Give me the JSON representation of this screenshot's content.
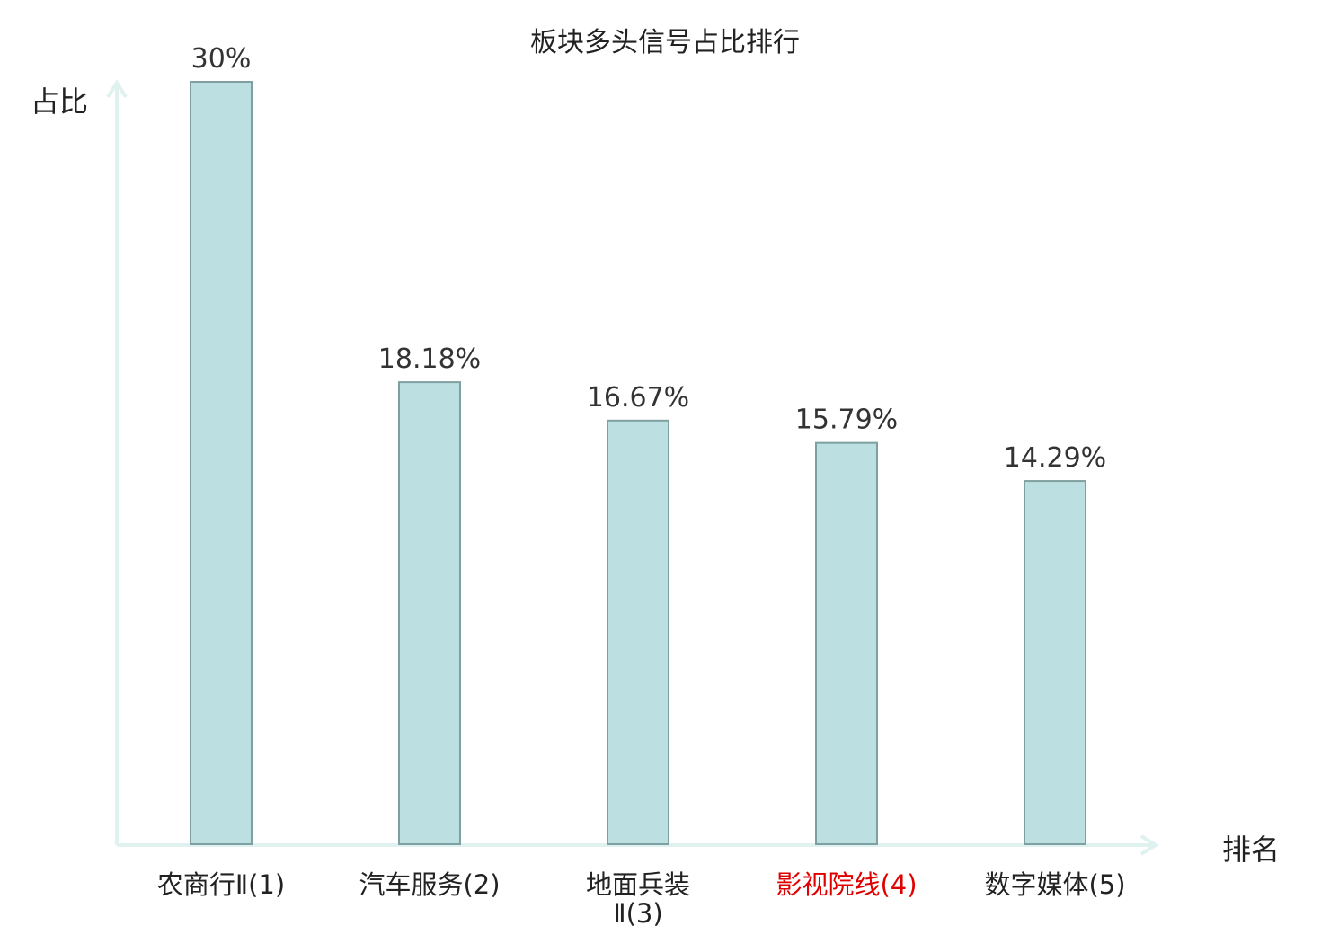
{
  "chart_data": {
    "type": "bar",
    "title": "板块多头信号占比排行",
    "xlabel": "排名",
    "ylabel": "占比",
    "categories": [
      "农商行Ⅱ(1)",
      "汽车服务(2)",
      "地面兵装Ⅱ(3)",
      "影视院线(4)",
      "数字媒体(5)"
    ],
    "category_lines": [
      [
        "农商行Ⅱ(1)"
      ],
      [
        "汽车服务(2)"
      ],
      [
        "地面兵装",
        "Ⅱ(3)"
      ],
      [
        "影视院线(4)"
      ],
      [
        "数字媒体(5)"
      ]
    ],
    "values": [
      30,
      18.18,
      16.67,
      15.79,
      14.29
    ],
    "value_labels": [
      "30%",
      "18.18%",
      "16.67%",
      "15.79%",
      "14.29%"
    ],
    "highlight_index": 3,
    "ylim": [
      0,
      30
    ],
    "grid": false,
    "legend": false
  },
  "colors": {
    "bar_fill": "#bce0e1",
    "bar_stroke": "#7f9fa0",
    "axis": "#dff2ef",
    "text": "#222222",
    "value_label": "#333333",
    "highlight": "#e00000"
  }
}
